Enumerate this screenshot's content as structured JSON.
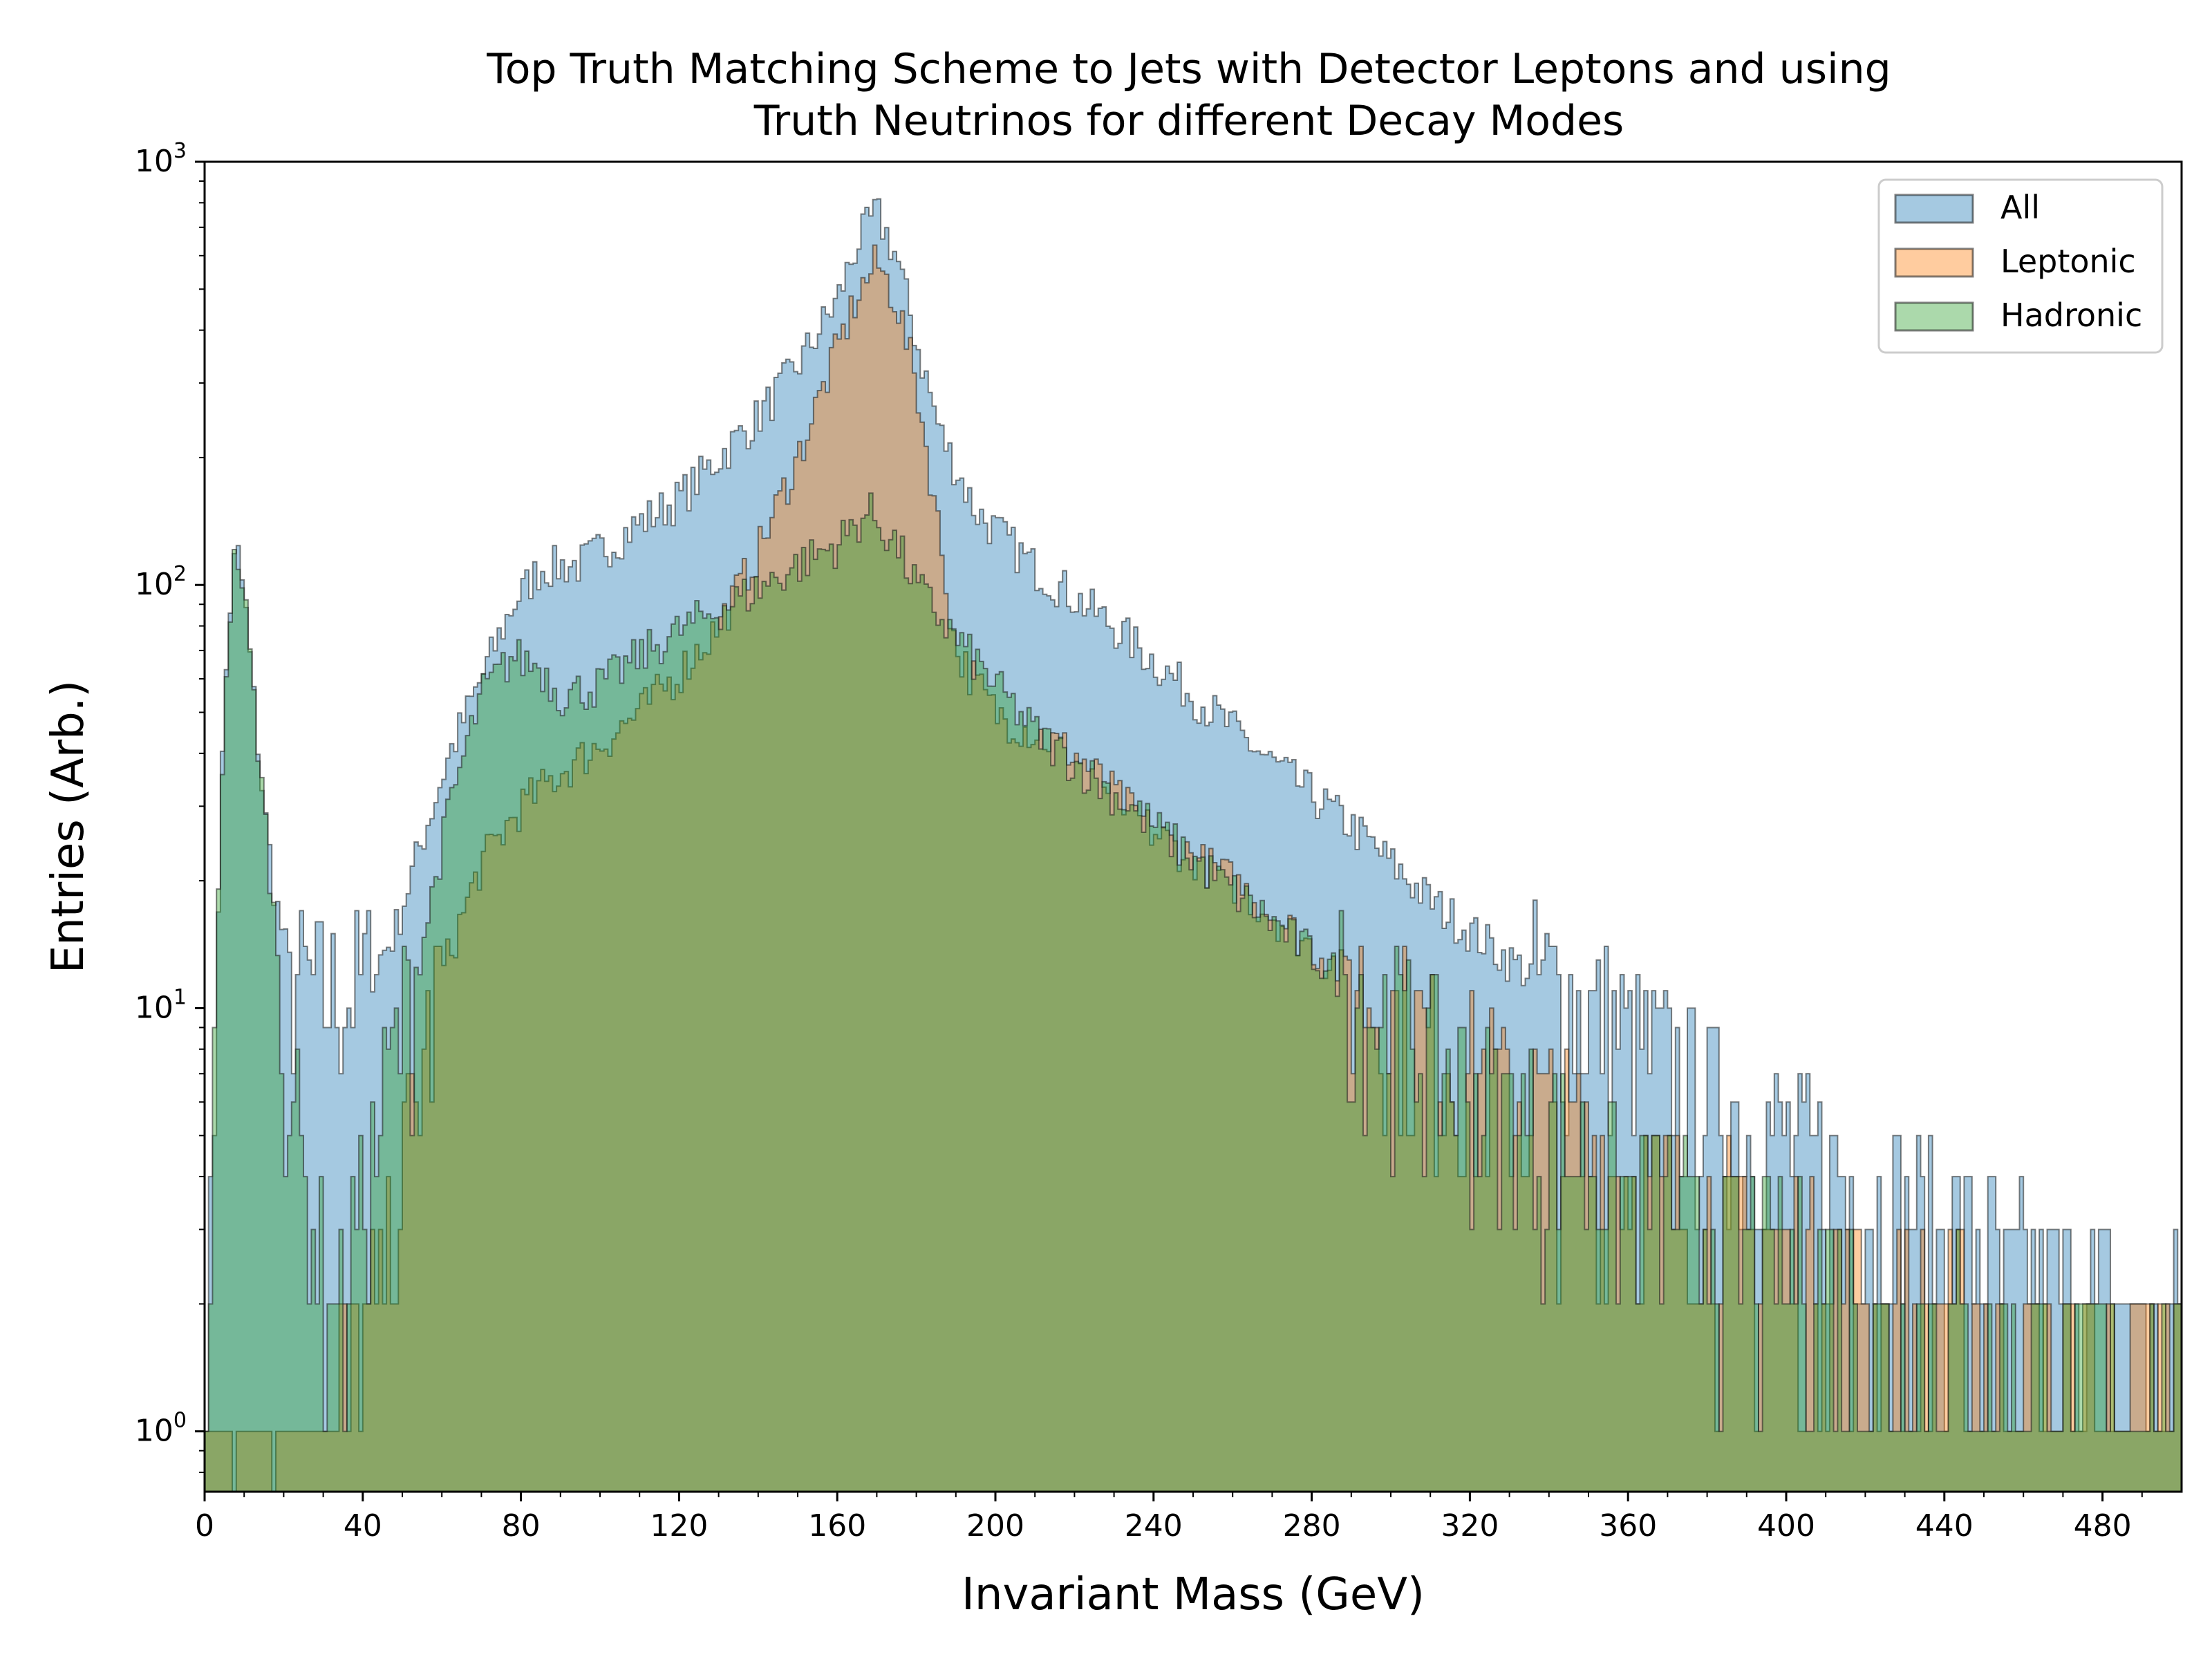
{
  "chart_data": {
    "type": "histogram",
    "title_line1": "Top Truth Matching Scheme to Jets with Detector Leptons and using",
    "title_line2": "Truth Neutrinos for different Decay Modes",
    "xlabel": "Invariant Mass (GeV)",
    "ylabel": "Entries (Arb.)",
    "xlim": [
      0,
      500
    ],
    "ylim": [
      0.72,
      1000
    ],
    "yscale": "log",
    "grid": false,
    "legend_position": "top-right",
    "x_ticks": [
      "0",
      "40",
      "80",
      "120",
      "160",
      "200",
      "240",
      "280",
      "320",
      "360",
      "400",
      "440",
      "480"
    ],
    "y_ticks": [
      {
        "base": "10",
        "exp": "0"
      },
      {
        "base": "10",
        "exp": "1"
      },
      {
        "base": "10",
        "exp": "2"
      },
      {
        "base": "10",
        "exp": "3"
      }
    ],
    "bin_width_gev": 1,
    "series": [
      {
        "name": "All",
        "color": "#1f77b4",
        "points": [
          [
            0,
            0.8
          ],
          [
            2,
            4
          ],
          [
            4,
            30
          ],
          [
            6,
            80
          ],
          [
            8,
            125
          ],
          [
            10,
            95
          ],
          [
            12,
            60
          ],
          [
            15,
            30
          ],
          [
            18,
            18
          ],
          [
            22,
            12
          ],
          [
            28,
            11
          ],
          [
            35,
            11
          ],
          [
            42,
            12
          ],
          [
            48,
            15
          ],
          [
            55,
            25
          ],
          [
            62,
            40
          ],
          [
            70,
            60
          ],
          [
            78,
            90
          ],
          [
            85,
            110
          ],
          [
            95,
            112
          ],
          [
            110,
            140
          ],
          [
            120,
            160
          ],
          [
            130,
            200
          ],
          [
            140,
            250
          ],
          [
            150,
            330
          ],
          [
            160,
            470
          ],
          [
            165,
            640
          ],
          [
            170,
            760
          ],
          [
            175,
            600
          ],
          [
            180,
            380
          ],
          [
            186,
            230
          ],
          [
            195,
            150
          ],
          [
            210,
            110
          ],
          [
            230,
            80
          ],
          [
            250,
            55
          ],
          [
            270,
            38
          ],
          [
            290,
            27
          ],
          [
            310,
            18
          ],
          [
            330,
            13
          ],
          [
            350,
            10
          ],
          [
            370,
            7.5
          ],
          [
            390,
            5.5
          ],
          [
            410,
            4.2
          ],
          [
            430,
            3.3
          ],
          [
            450,
            2.6
          ],
          [
            470,
            2.2
          ],
          [
            490,
            1.9
          ],
          [
            500,
            1.8
          ]
        ]
      },
      {
        "name": "Leptonic",
        "color": "#ff7f0e",
        "points": [
          [
            0,
            0.8
          ],
          [
            20,
            0.9
          ],
          [
            40,
            1.4
          ],
          [
            50,
            4
          ],
          [
            60,
            12
          ],
          [
            70,
            22
          ],
          [
            80,
            30
          ],
          [
            90,
            36
          ],
          [
            100,
            42
          ],
          [
            110,
            50
          ],
          [
            120,
            62
          ],
          [
            130,
            80
          ],
          [
            140,
            120
          ],
          [
            150,
            200
          ],
          [
            160,
            360
          ],
          [
            165,
            480
          ],
          [
            170,
            580
          ],
          [
            175,
            470
          ],
          [
            180,
            300
          ],
          [
            185,
            150
          ],
          [
            190,
            70
          ],
          [
            200,
            50
          ],
          [
            220,
            40
          ],
          [
            240,
            26
          ],
          [
            260,
            20
          ],
          [
            280,
            14
          ],
          [
            300,
            10
          ],
          [
            320,
            7
          ],
          [
            340,
            5.5
          ],
          [
            360,
            4
          ],
          [
            380,
            3.2
          ],
          [
            400,
            2.6
          ],
          [
            430,
            2
          ],
          [
            460,
            1.6
          ],
          [
            500,
            1.3
          ]
        ]
      },
      {
        "name": "Hadronic",
        "color": "#2ca02c",
        "points": [
          [
            0,
            0.8
          ],
          [
            2,
            4
          ],
          [
            4,
            30
          ],
          [
            6,
            80
          ],
          [
            8,
            125
          ],
          [
            10,
            95
          ],
          [
            12,
            60
          ],
          [
            15,
            30
          ],
          [
            18,
            15
          ],
          [
            22,
            7
          ],
          [
            26,
            3.5
          ],
          [
            30,
            2.2
          ],
          [
            35,
            2
          ],
          [
            42,
            4
          ],
          [
            48,
            8
          ],
          [
            55,
            14
          ],
          [
            62,
            30
          ],
          [
            70,
            55
          ],
          [
            78,
            68
          ],
          [
            85,
            64
          ],
          [
            90,
            55
          ],
          [
            100,
            58
          ],
          [
            110,
            68
          ],
          [
            120,
            78
          ],
          [
            130,
            88
          ],
          [
            140,
            98
          ],
          [
            150,
            112
          ],
          [
            160,
            125
          ],
          [
            168,
            150
          ],
          [
            175,
            125
          ],
          [
            180,
            100
          ],
          [
            190,
            75
          ],
          [
            200,
            58
          ],
          [
            210,
            45
          ],
          [
            225,
            35
          ],
          [
            240,
            27
          ],
          [
            260,
            19
          ],
          [
            280,
            13.5
          ],
          [
            300,
            9.5
          ],
          [
            320,
            6.5
          ],
          [
            340,
            5
          ],
          [
            360,
            3.8
          ],
          [
            380,
            3
          ],
          [
            400,
            2.4
          ],
          [
            430,
            1.9
          ],
          [
            460,
            1.5
          ],
          [
            500,
            1.2
          ]
        ]
      }
    ]
  }
}
